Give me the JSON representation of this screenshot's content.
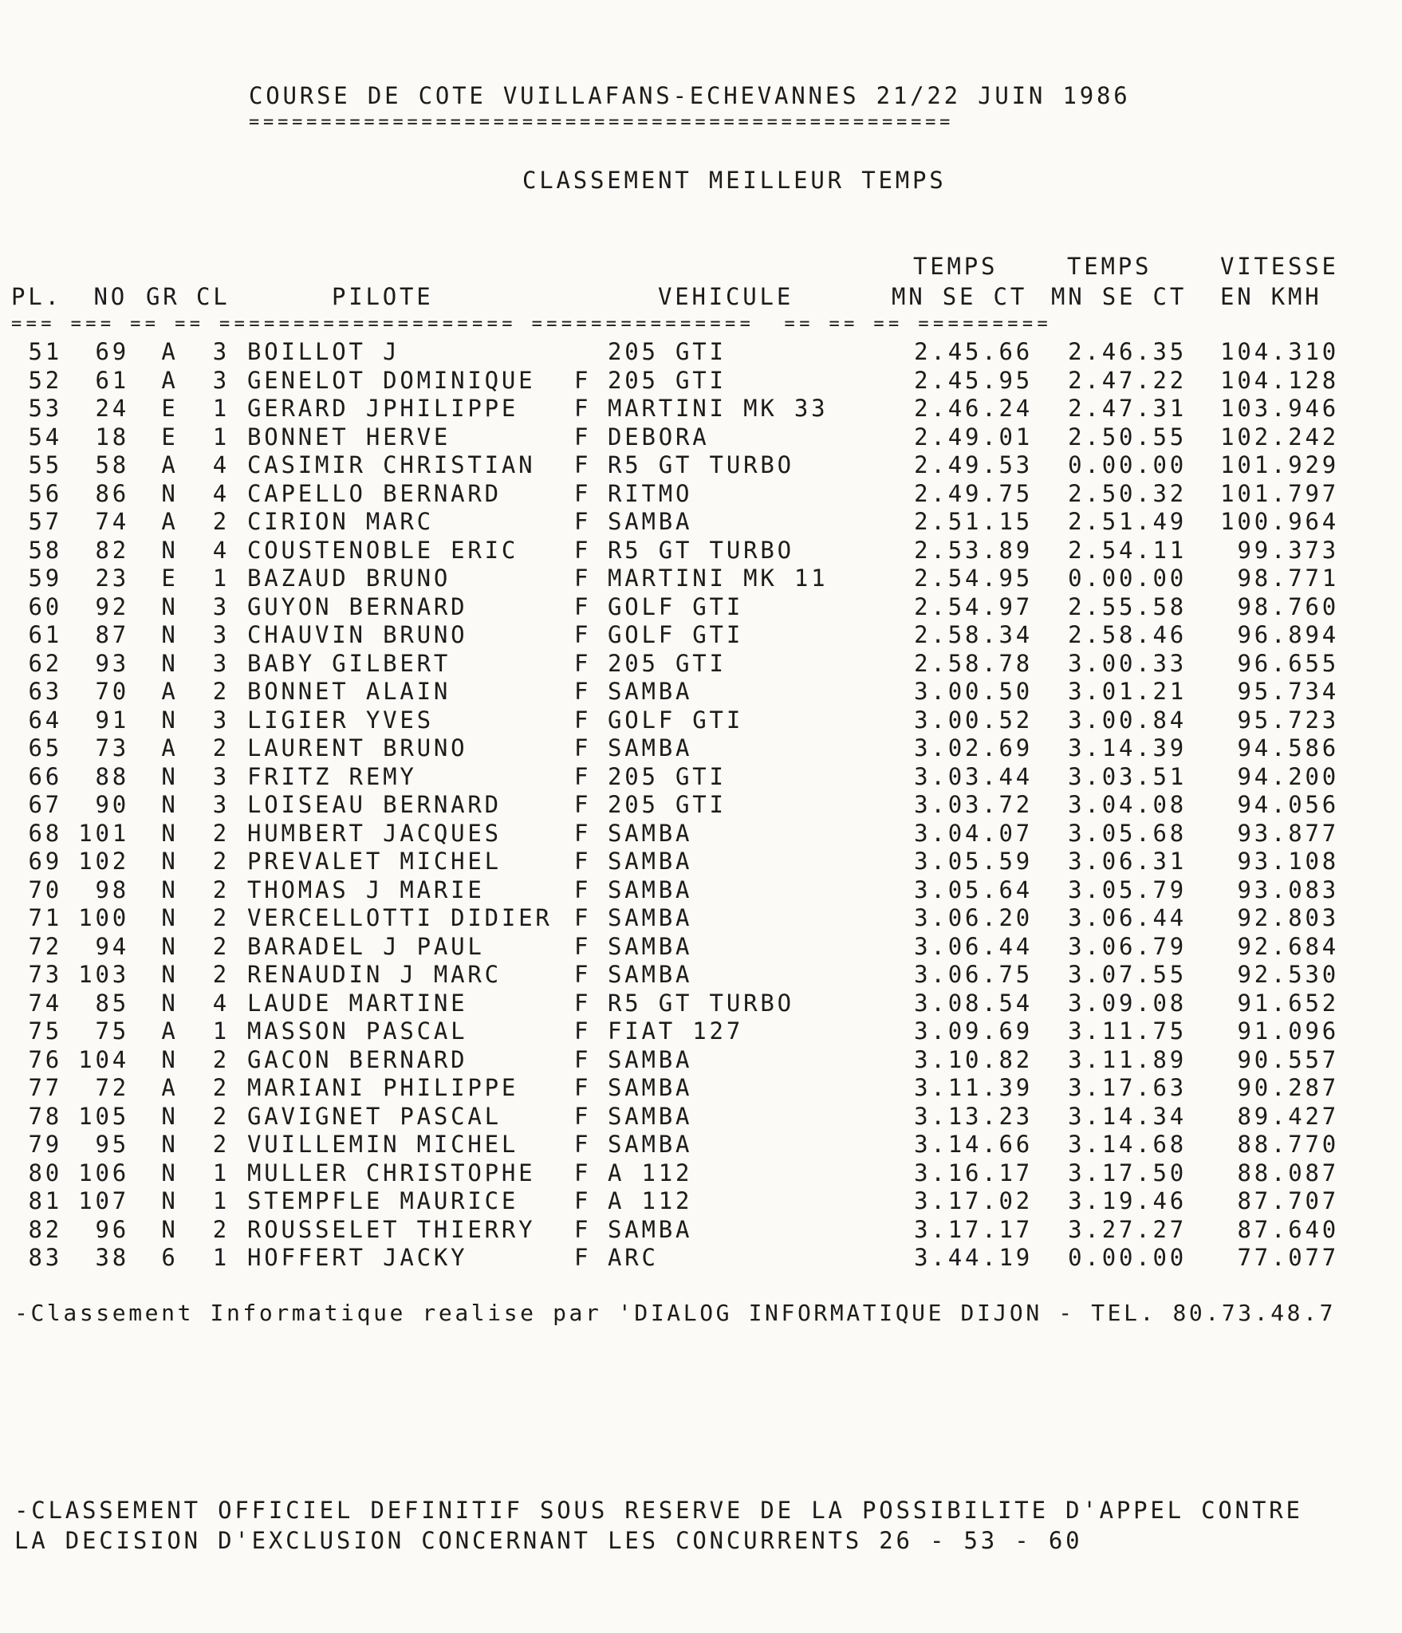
{
  "title": "COURSE DE COTE VUILLAFANS-ECHEVANNES 21/22 JUIN 1986",
  "title_underline": "=================================================",
  "subtitle": "CLASSEMENT MEILLEUR TEMPS",
  "headers": {
    "pl": "PL.",
    "no": "NO",
    "gr": "GR",
    "cl": "CL",
    "pilote": "PILOTE",
    "vehicule": "VEHICULE",
    "temps1_top": "TEMPS",
    "temps1_sub": "MN SE CT",
    "temps2_top": "TEMPS",
    "temps2_sub": "MN SE CT",
    "vitesse_top": "VITESSE",
    "vitesse_sub": "EN KMH"
  },
  "header_rule": "=== === == == ==================== ===============  == == == =========",
  "rows": [
    [
      "51",
      "69",
      "A",
      "3",
      "BOILLOT J",
      "",
      "205 GTI",
      "2.45.66",
      "2.46.35",
      "104.310"
    ],
    [
      "52",
      "61",
      "A",
      "3",
      "GENELOT DOMINIQUE",
      "F",
      "205 GTI",
      "2.45.95",
      "2.47.22",
      "104.128"
    ],
    [
      "53",
      "24",
      "E",
      "1",
      "GERARD JPHILIPPE",
      "F",
      "MARTINI MK 33",
      "2.46.24",
      "2.47.31",
      "103.946"
    ],
    [
      "54",
      "18",
      "E",
      "1",
      "BONNET HERVE",
      "F",
      "DEBORA",
      "2.49.01",
      "2.50.55",
      "102.242"
    ],
    [
      "55",
      "58",
      "A",
      "4",
      "CASIMIR CHRISTIAN",
      "F",
      "R5 GT TURBO",
      "2.49.53",
      "0.00.00",
      "101.929"
    ],
    [
      "56",
      "86",
      "N",
      "4",
      "CAPELLO BERNARD",
      "F",
      "RITMO",
      "2.49.75",
      "2.50.32",
      "101.797"
    ],
    [
      "57",
      "74",
      "A",
      "2",
      "CIRION MARC",
      "F",
      "SAMBA",
      "2.51.15",
      "2.51.49",
      "100.964"
    ],
    [
      "58",
      "82",
      "N",
      "4",
      "COUSTENOBLE ERIC",
      "F",
      "R5 GT TURBO",
      "2.53.89",
      "2.54.11",
      "99.373"
    ],
    [
      "59",
      "23",
      "E",
      "1",
      "BAZAUD BRUNO",
      "F",
      "MARTINI MK 11",
      "2.54.95",
      "0.00.00",
      "98.771"
    ],
    [
      "60",
      "92",
      "N",
      "3",
      "GUYON BERNARD",
      "F",
      "GOLF GTI",
      "2.54.97",
      "2.55.58",
      "98.760"
    ],
    [
      "61",
      "87",
      "N",
      "3",
      "CHAUVIN BRUNO",
      "F",
      "GOLF GTI",
      "2.58.34",
      "2.58.46",
      "96.894"
    ],
    [
      "62",
      "93",
      "N",
      "3",
      "BABY GILBERT",
      "F",
      "205 GTI",
      "2.58.78",
      "3.00.33",
      "96.655"
    ],
    [
      "63",
      "70",
      "A",
      "2",
      "BONNET ALAIN",
      "F",
      "SAMBA",
      "3.00.50",
      "3.01.21",
      "95.734"
    ],
    [
      "64",
      "91",
      "N",
      "3",
      "LIGIER YVES",
      "F",
      "GOLF GTI",
      "3.00.52",
      "3.00.84",
      "95.723"
    ],
    [
      "65",
      "73",
      "A",
      "2",
      "LAURENT BRUNO",
      "F",
      "SAMBA",
      "3.02.69",
      "3.14.39",
      "94.586"
    ],
    [
      "66",
      "88",
      "N",
      "3",
      "FRITZ REMY",
      "F",
      "205 GTI",
      "3.03.44",
      "3.03.51",
      "94.200"
    ],
    [
      "67",
      "90",
      "N",
      "3",
      "LOISEAU BERNARD",
      "F",
      "205 GTI",
      "3.03.72",
      "3.04.08",
      "94.056"
    ],
    [
      "68",
      "101",
      "N",
      "2",
      "HUMBERT JACQUES",
      "F",
      "SAMBA",
      "3.04.07",
      "3.05.68",
      "93.877"
    ],
    [
      "69",
      "102",
      "N",
      "2",
      "PREVALET MICHEL",
      "F",
      "SAMBA",
      "3.05.59",
      "3.06.31",
      "93.108"
    ],
    [
      "70",
      "98",
      "N",
      "2",
      "THOMAS J MARIE",
      "F",
      "SAMBA",
      "3.05.64",
      "3.05.79",
      "93.083"
    ],
    [
      "71",
      "100",
      "N",
      "2",
      "VERCELLOTTI DIDIER",
      "F",
      "SAMBA",
      "3.06.20",
      "3.06.44",
      "92.803"
    ],
    [
      "72",
      "94",
      "N",
      "2",
      "BARADEL J PAUL",
      "F",
      "SAMBA",
      "3.06.44",
      "3.06.79",
      "92.684"
    ],
    [
      "73",
      "103",
      "N",
      "2",
      "RENAUDIN J MARC",
      "F",
      "SAMBA",
      "3.06.75",
      "3.07.55",
      "92.530"
    ],
    [
      "74",
      "85",
      "N",
      "4",
      "LAUDE MARTINE",
      "F",
      "R5 GT TURBO",
      "3.08.54",
      "3.09.08",
      "91.652"
    ],
    [
      "75",
      "75",
      "A",
      "1",
      "MASSON PASCAL",
      "F",
      "FIAT 127",
      "3.09.69",
      "3.11.75",
      "91.096"
    ],
    [
      "76",
      "104",
      "N",
      "2",
      "GACON BERNARD",
      "F",
      "SAMBA",
      "3.10.82",
      "3.11.89",
      "90.557"
    ],
    [
      "77",
      "72",
      "A",
      "2",
      "MARIANI PHILIPPE",
      "F",
      "SAMBA",
      "3.11.39",
      "3.17.63",
      "90.287"
    ],
    [
      "78",
      "105",
      "N",
      "2",
      "GAVIGNET PASCAL",
      "F",
      "SAMBA",
      "3.13.23",
      "3.14.34",
      "89.427"
    ],
    [
      "79",
      "95",
      "N",
      "2",
      "VUILLEMIN MICHEL",
      "F",
      "SAMBA",
      "3.14.66",
      "3.14.68",
      "88.770"
    ],
    [
      "80",
      "106",
      "N",
      "1",
      "MULLER CHRISTOPHE",
      "F",
      "A 112",
      "3.16.17",
      "3.17.50",
      "88.087"
    ],
    [
      "81",
      "107",
      "N",
      "1",
      "STEMPFLE MAURICE",
      "F",
      "A 112",
      "3.17.02",
      "3.19.46",
      "87.707"
    ],
    [
      "82",
      "96",
      "N",
      "2",
      "ROUSSELET THIERRY",
      "F",
      "SAMBA",
      "3.17.17",
      "3.27.27",
      "87.640"
    ],
    [
      "83",
      "38",
      "6",
      "1",
      "HOFFERT JACKY",
      "F",
      "ARC",
      "3.44.19",
      "0.00.00",
      "77.077"
    ]
  ],
  "footer_credit": "-Classement Informatique realise par 'DIALOG INFORMATIQUE DIJON - TEL. 80.73.48.7",
  "notice_line1": "-CLASSEMENT OFFICIEL DEFINITIF SOUS RESERVE DE LA POSSIBILITE D'APPEL CONTRE",
  "notice_line2": "LA DECISION D'EXCLUSION CONCERNANT LES CONCURRENTS 26 - 53 - 60"
}
